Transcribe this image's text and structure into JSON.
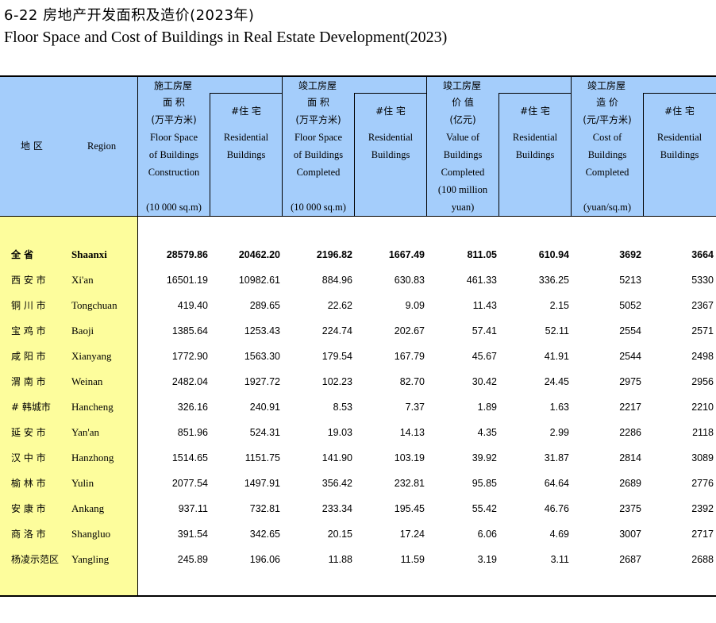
{
  "title": {
    "cn": "6-22  房地产开发面积及造价(2023年)",
    "en": "Floor Space and Cost of Buildings in Real Estate Development(2023)"
  },
  "header": {
    "region_cn": "地  区",
    "region_en": "Region",
    "col1_group": "施工房屋",
    "col1_lines": [
      "面  积",
      "(万平方米)",
      "Floor Space",
      "of Buildings",
      "Construction"
    ],
    "col1_unit": "(10 000 sq.m)",
    "col2_lines": [
      "#住  宅",
      "Residential",
      "Buildings"
    ],
    "col3_group": "竣工房屋",
    "col3_lines": [
      "面  积",
      "(万平方米)",
      "Floor Space",
      "of Buildings",
      "Completed"
    ],
    "col3_unit": "(10 000 sq.m)",
    "col4_lines": [
      "#住  宅",
      "Residential",
      "Buildings"
    ],
    "col5_group": "竣工房屋",
    "col5_lines": [
      "价  值",
      "(亿元)",
      "Value of",
      "Buildings",
      "Completed",
      "(100 million"
    ],
    "col5_unit": "yuan)",
    "col6_lines": [
      "#住  宅",
      "Residential",
      "Buildings"
    ],
    "col7_group": "竣工房屋",
    "col7_lines": [
      "造  价",
      "(元/平方米)",
      "Cost of",
      "Buildings",
      "Completed"
    ],
    "col7_unit": "(yuan/sq.m)",
    "col8_lines": [
      "#住  宅",
      "Residential",
      "Buildings"
    ]
  },
  "rows": [
    {
      "cn": "全      省",
      "en": "Shaanxi",
      "v": [
        "28579.86",
        "20462.20",
        "2196.82",
        "1667.49",
        "811.05",
        "610.94",
        "3692",
        "3664"
      ]
    },
    {
      "cn": "西 安 市",
      "en": "Xi'an",
      "v": [
        "16501.19",
        "10982.61",
        "884.96",
        "630.83",
        "461.33",
        "336.25",
        "5213",
        "5330"
      ]
    },
    {
      "cn": "铜 川 市",
      "en": "Tongchuan",
      "v": [
        "419.40",
        "289.65",
        "22.62",
        "9.09",
        "11.43",
        "2.15",
        "5052",
        "2367"
      ]
    },
    {
      "cn": "宝 鸡 市",
      "en": "Baoji",
      "v": [
        "1385.64",
        "1253.43",
        "224.74",
        "202.67",
        "57.41",
        "52.11",
        "2554",
        "2571"
      ]
    },
    {
      "cn": "咸 阳 市",
      "en": "Xianyang",
      "v": [
        "1772.90",
        "1563.30",
        "179.54",
        "167.79",
        "45.67",
        "41.91",
        "2544",
        "2498"
      ]
    },
    {
      "cn": "渭 南 市",
      "en": "Weinan",
      "v": [
        "2482.04",
        "1927.72",
        "102.23",
        "82.70",
        "30.42",
        "24.45",
        "2975",
        "2956"
      ]
    },
    {
      "cn": " # 韩城市",
      "en": "Hancheng",
      "v": [
        "326.16",
        "240.91",
        "8.53",
        "7.37",
        "1.89",
        "1.63",
        "2217",
        "2210"
      ]
    },
    {
      "cn": "延 安 市",
      "en": "Yan'an",
      "v": [
        "851.96",
        "524.31",
        "19.03",
        "14.13",
        "4.35",
        "2.99",
        "2286",
        "2118"
      ]
    },
    {
      "cn": "汉 中 市",
      "en": "Hanzhong",
      "v": [
        "1514.65",
        "1151.75",
        "141.90",
        "103.19",
        "39.92",
        "31.87",
        "2814",
        "3089"
      ]
    },
    {
      "cn": "榆 林 市",
      "en": "Yulin",
      "v": [
        "2077.54",
        "1497.91",
        "356.42",
        "232.81",
        "95.85",
        "64.64",
        "2689",
        "2776"
      ]
    },
    {
      "cn": "安 康 市",
      "en": "Ankang",
      "v": [
        "937.11",
        "732.81",
        "233.34",
        "195.45",
        "55.42",
        "46.76",
        "2375",
        "2392"
      ]
    },
    {
      "cn": "商 洛 市",
      "en": "Shangluo",
      "v": [
        "391.54",
        "342.65",
        "20.15",
        "17.24",
        "6.06",
        "4.69",
        "3007",
        "2717"
      ]
    },
    {
      "cn": "杨凌示范区",
      "en": "Yangling",
      "v": [
        "245.89",
        "196.06",
        "11.88",
        "11.59",
        "3.19",
        "3.11",
        "2687",
        "2688"
      ]
    }
  ]
}
